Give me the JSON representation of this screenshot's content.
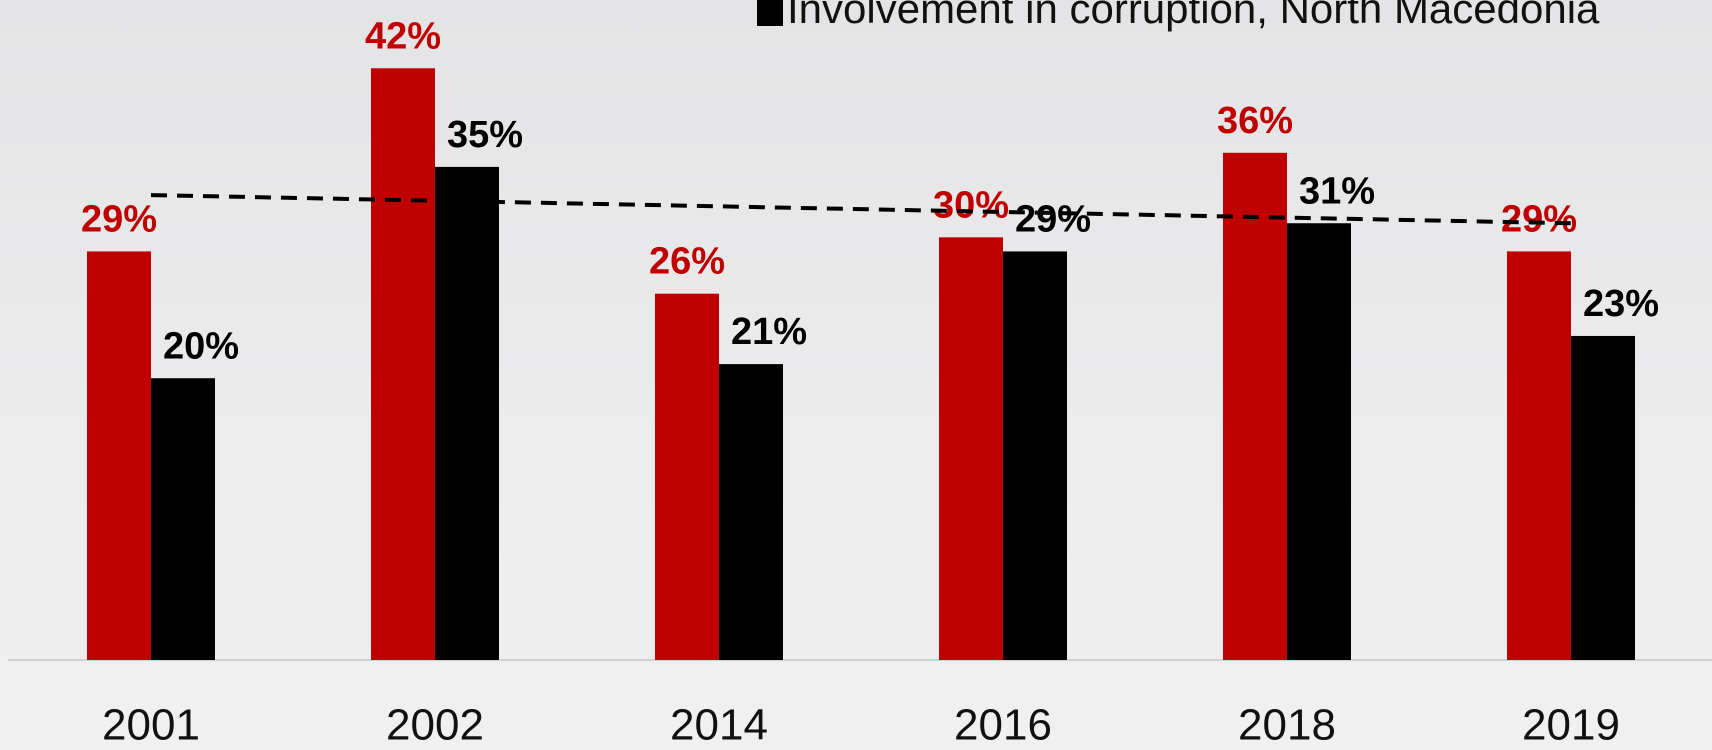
{
  "chart_data": {
    "type": "bar",
    "categories": [
      "2001",
      "2002",
      "2014",
      "2016",
      "2018",
      "2019"
    ],
    "series": [
      {
        "color": "#c00000",
        "values": [
          29,
          42,
          26,
          30,
          36,
          29
        ],
        "value_labels": [
          "29%",
          "42%",
          "26%",
          "30%",
          "36%",
          "29%"
        ],
        "trendline": "linear"
      },
      {
        "name": "Involvement in corruption, North Macedonia",
        "color": "#000000",
        "values": [
          20,
          35,
          21,
          29,
          31,
          23
        ],
        "value_labels": [
          "20%",
          "35%",
          "21%",
          "29%",
          "31%",
          "23%"
        ]
      }
    ],
    "ylim": [
      0,
      45
    ],
    "legend": "top-right"
  }
}
